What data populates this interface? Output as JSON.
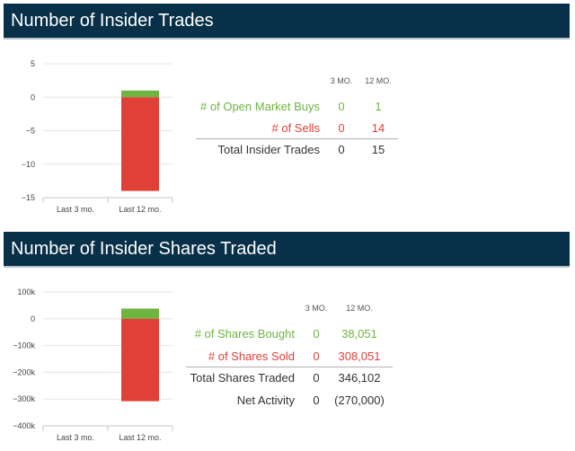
{
  "section1": {
    "title": "Number of Insider Trades",
    "columns": [
      "3 MO.",
      "12 MO."
    ],
    "rows": [
      {
        "label": "# of Open Market Buys",
        "m3": "0",
        "m12": "1",
        "color": "#6fb43f"
      },
      {
        "label": "# of Sells",
        "m3": "0",
        "m12": "14",
        "color": "#df4136"
      },
      {
        "label": "Total Insider Trades",
        "m3": "0",
        "m12": "15",
        "color": "#333333"
      }
    ]
  },
  "section2": {
    "title": "Number of Insider Shares Traded",
    "columns": [
      "3 MO.",
      "12 MO."
    ],
    "rows": [
      {
        "label": "# of Shares Bought",
        "m3": "0",
        "m12": "38,051",
        "color": "#6fb43f"
      },
      {
        "label": "# of Shares Sold",
        "m3": "0",
        "m12": "308,051",
        "color": "#df4136"
      },
      {
        "label": "Total Shares Traded",
        "m3": "0",
        "m12": "346,102",
        "color": "#333333"
      },
      {
        "label": "Net Activity",
        "m3": "0",
        "m12": "(270,000)",
        "color": "#333333"
      }
    ]
  },
  "chart_data": [
    {
      "type": "bar",
      "stacked": true,
      "categories": [
        "Last 3 mo.",
        "Last 12 mo."
      ],
      "series": [
        {
          "values": [
            0,
            1
          ],
          "color": "#6fb43f"
        },
        {
          "values": [
            0,
            -14
          ],
          "color": "#df4136"
        }
      ],
      "yticks": [
        "5",
        "0",
        "−5",
        "−10",
        "−15"
      ],
      "ytick_values": [
        5,
        0,
        -5,
        -10,
        -15
      ],
      "ylim": [
        -15,
        5
      ],
      "grid": true
    },
    {
      "type": "bar",
      "stacked": true,
      "categories": [
        "Last 3 mo.",
        "Last 12 mo."
      ],
      "series": [
        {
          "values": [
            0,
            38051
          ],
          "color": "#6fb43f"
        },
        {
          "values": [
            0,
            -308051
          ],
          "color": "#df4136"
        }
      ],
      "yticks": [
        "100k",
        "0",
        "−100k",
        "−200k",
        "−300k",
        "−400k"
      ],
      "ytick_values": [
        100000,
        0,
        -100000,
        -200000,
        -300000,
        -400000
      ],
      "ylim": [
        -400000,
        100000
      ],
      "grid": true
    }
  ]
}
